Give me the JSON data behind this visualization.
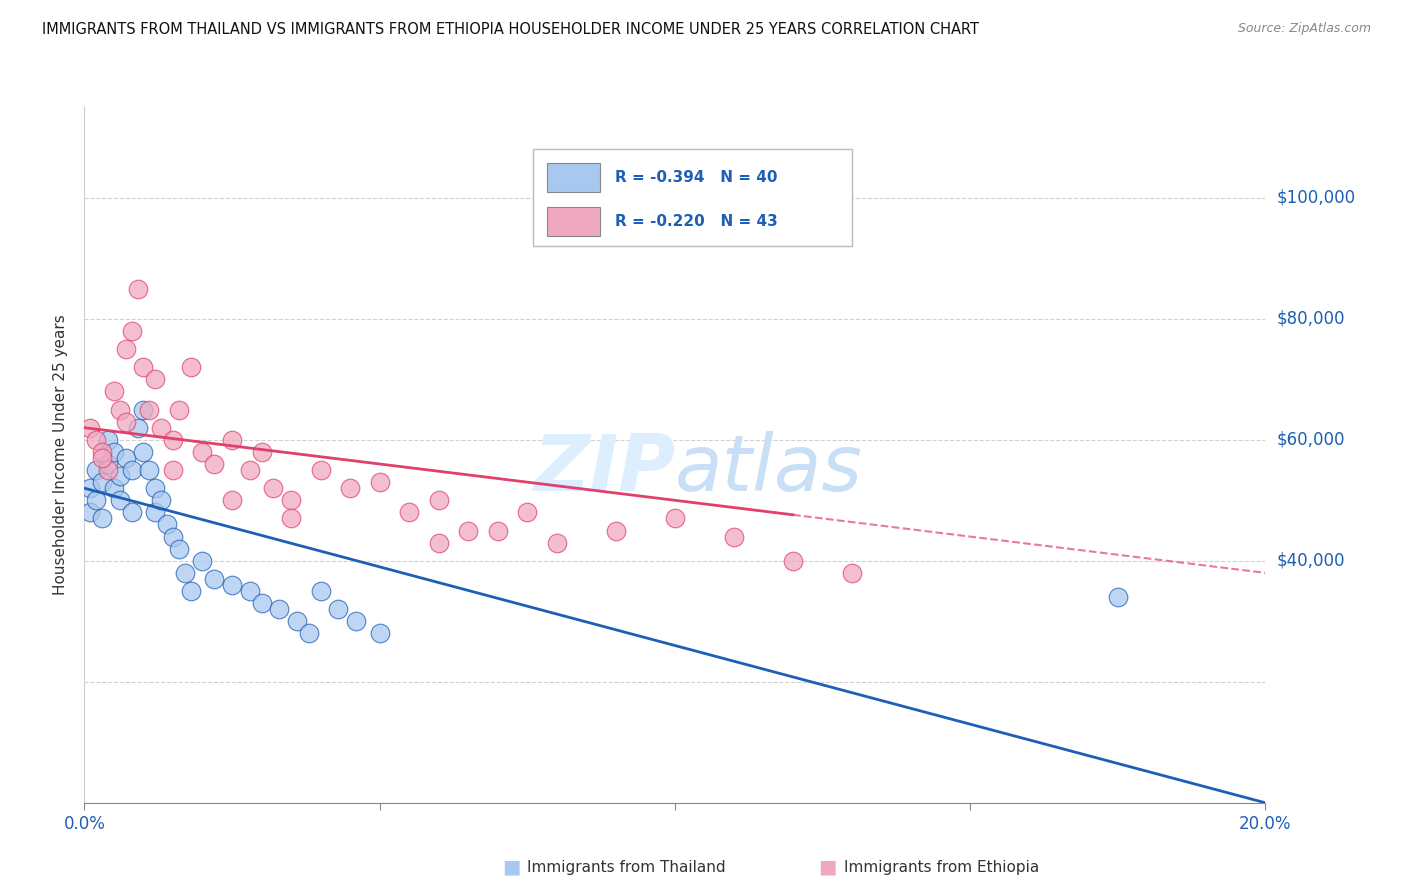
{
  "title": "IMMIGRANTS FROM THAILAND VS IMMIGRANTS FROM ETHIOPIA HOUSEHOLDER INCOME UNDER 25 YEARS CORRELATION CHART",
  "source": "Source: ZipAtlas.com",
  "ylabel": "Householder Income Under 25 years",
  "xlim": [
    0.0,
    0.2
  ],
  "ylim": [
    0,
    115000
  ],
  "ytick_values": [
    20000,
    40000,
    60000,
    80000,
    100000
  ],
  "xtick_values": [
    0.0,
    0.05,
    0.1,
    0.15,
    0.2
  ],
  "xtick_labels": [
    "0.0%",
    "",
    "",
    "",
    "20.0%"
  ],
  "right_ytick_labels": [
    "$40,000",
    "$60,000",
    "$80,000",
    "$100,000"
  ],
  "right_ytick_values": [
    40000,
    60000,
    80000,
    100000
  ],
  "color_thailand": "#a8c8f0",
  "color_ethiopia": "#f0a8c0",
  "line_color_thailand": "#1e5fb5",
  "line_color_ethiopia": "#e0406a",
  "watermark_color": "#ddeeff",
  "background_color": "#ffffff",
  "grid_color": "#cccccc",
  "thailand_x": [
    0.001,
    0.001,
    0.002,
    0.002,
    0.003,
    0.003,
    0.004,
    0.004,
    0.005,
    0.005,
    0.006,
    0.006,
    0.007,
    0.008,
    0.008,
    0.009,
    0.01,
    0.01,
    0.011,
    0.012,
    0.012,
    0.013,
    0.014,
    0.015,
    0.016,
    0.017,
    0.018,
    0.02,
    0.022,
    0.025,
    0.028,
    0.03,
    0.033,
    0.036,
    0.038,
    0.04,
    0.043,
    0.046,
    0.05,
    0.175
  ],
  "thailand_y": [
    52000,
    48000,
    55000,
    50000,
    53000,
    47000,
    60000,
    56000,
    58000,
    52000,
    54000,
    50000,
    57000,
    55000,
    48000,
    62000,
    65000,
    58000,
    55000,
    52000,
    48000,
    50000,
    46000,
    44000,
    42000,
    38000,
    35000,
    40000,
    37000,
    36000,
    35000,
    33000,
    32000,
    30000,
    28000,
    35000,
    32000,
    30000,
    28000,
    34000
  ],
  "ethiopia_x": [
    0.001,
    0.002,
    0.003,
    0.004,
    0.005,
    0.006,
    0.007,
    0.008,
    0.009,
    0.01,
    0.011,
    0.012,
    0.013,
    0.015,
    0.016,
    0.018,
    0.02,
    0.022,
    0.025,
    0.028,
    0.03,
    0.032,
    0.035,
    0.04,
    0.045,
    0.05,
    0.055,
    0.06,
    0.065,
    0.07,
    0.075,
    0.08,
    0.09,
    0.1,
    0.11,
    0.12,
    0.003,
    0.007,
    0.015,
    0.025,
    0.035,
    0.06,
    0.13
  ],
  "ethiopia_y": [
    62000,
    60000,
    58000,
    55000,
    68000,
    65000,
    75000,
    78000,
    85000,
    72000,
    65000,
    70000,
    62000,
    60000,
    65000,
    72000,
    58000,
    56000,
    60000,
    55000,
    58000,
    52000,
    50000,
    55000,
    52000,
    53000,
    48000,
    50000,
    45000,
    45000,
    48000,
    43000,
    45000,
    47000,
    44000,
    40000,
    57000,
    63000,
    55000,
    50000,
    47000,
    43000,
    38000
  ]
}
